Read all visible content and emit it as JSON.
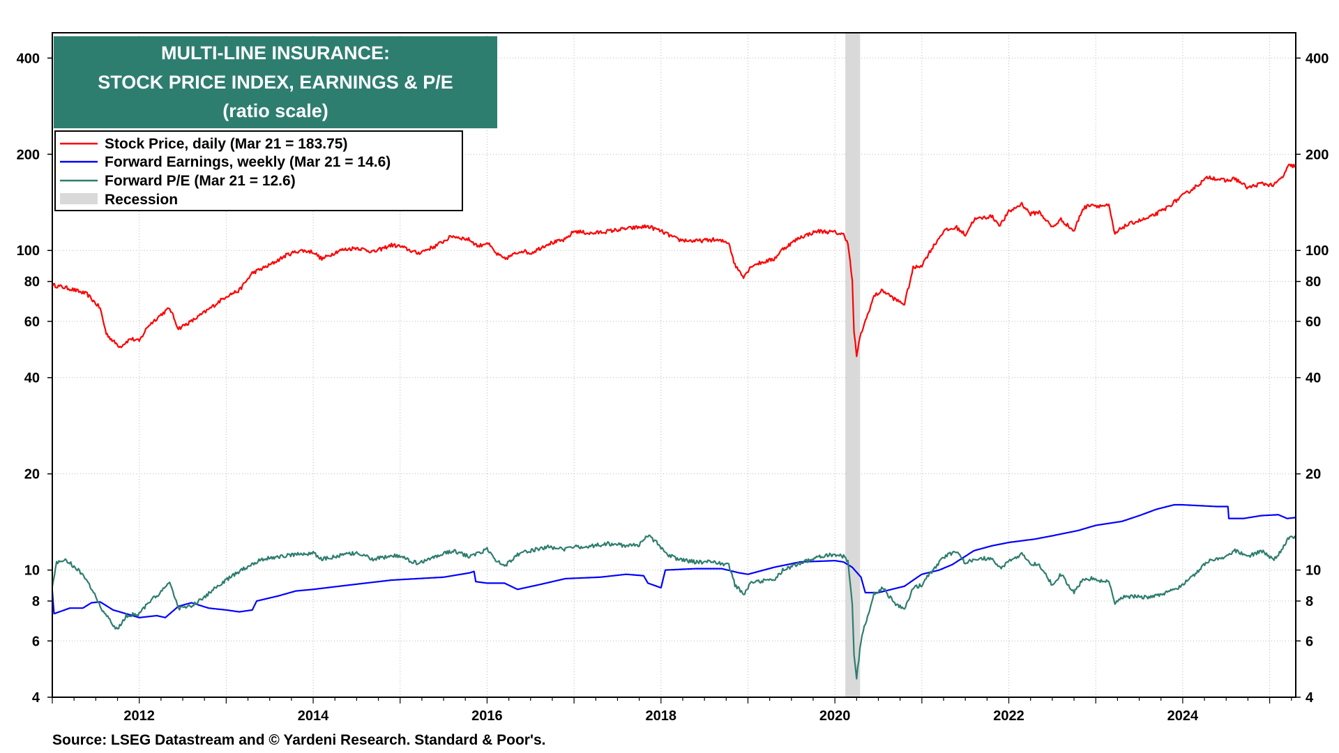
{
  "chart_data": {
    "type": "line",
    "title_lines": [
      "MULTI-LINE INSURANCE:",
      "STOCK PRICE INDEX, EARNINGS & P/E",
      "(ratio scale)"
    ],
    "y_scale": "log",
    "ylim": [
      4,
      480
    ],
    "xlim": [
      2011.0,
      2025.3
    ],
    "y_ticks": [
      4,
      6,
      8,
      10,
      20,
      40,
      60,
      80,
      100,
      200,
      400
    ],
    "x_ticks": [
      "2012",
      "2014",
      "2016",
      "2018",
      "2020",
      "2022",
      "2024"
    ],
    "x_tick_values": [
      2012,
      2014,
      2016,
      2018,
      2020,
      2022,
      2024
    ],
    "grid": true,
    "legend_position": "top-left",
    "recession": {
      "label": "Recession",
      "start": 2020.12,
      "end": 2020.29,
      "color": "#d9d9d9"
    },
    "source": "Source: LSEG Datastream and © Yardeni Research. Standard & Poor's.",
    "series": [
      {
        "name": "Stock Price, daily (Mar 21 = 183.75)",
        "color": "#ff0000",
        "points": [
          [
            2011.0,
            78
          ],
          [
            2011.2,
            76
          ],
          [
            2011.4,
            73
          ],
          [
            2011.55,
            66
          ],
          [
            2011.62,
            55
          ],
          [
            2011.7,
            52
          ],
          [
            2011.78,
            50
          ],
          [
            2011.9,
            53
          ],
          [
            2012.0,
            52
          ],
          [
            2012.1,
            58
          ],
          [
            2012.25,
            63
          ],
          [
            2012.35,
            66
          ],
          [
            2012.45,
            57
          ],
          [
            2012.6,
            60
          ],
          [
            2012.75,
            64
          ],
          [
            2012.85,
            67
          ],
          [
            2013.0,
            72
          ],
          [
            2013.15,
            75
          ],
          [
            2013.3,
            85
          ],
          [
            2013.5,
            90
          ],
          [
            2013.7,
            97
          ],
          [
            2013.85,
            100
          ],
          [
            2014.0,
            99
          ],
          [
            2014.1,
            94
          ],
          [
            2014.3,
            100
          ],
          [
            2014.5,
            102
          ],
          [
            2014.7,
            99
          ],
          [
            2014.9,
            104
          ],
          [
            2015.0,
            103
          ],
          [
            2015.2,
            98
          ],
          [
            2015.4,
            103
          ],
          [
            2015.6,
            111
          ],
          [
            2015.8,
            108
          ],
          [
            2015.9,
            103
          ],
          [
            2016.0,
            106
          ],
          [
            2016.1,
            98
          ],
          [
            2016.2,
            94
          ],
          [
            2016.4,
            100
          ],
          [
            2016.5,
            98
          ],
          [
            2016.7,
            105
          ],
          [
            2016.9,
            108
          ],
          [
            2017.0,
            115
          ],
          [
            2017.2,
            113
          ],
          [
            2017.4,
            115
          ],
          [
            2017.6,
            117
          ],
          [
            2017.85,
            119
          ],
          [
            2018.0,
            115
          ],
          [
            2018.2,
            108
          ],
          [
            2018.4,
            107
          ],
          [
            2018.6,
            108
          ],
          [
            2018.78,
            106
          ],
          [
            2018.85,
            90
          ],
          [
            2018.95,
            83
          ],
          [
            2019.05,
            90
          ],
          [
            2019.3,
            94
          ],
          [
            2019.4,
            101
          ],
          [
            2019.6,
            110
          ],
          [
            2019.8,
            115
          ],
          [
            2020.0,
            114
          ],
          [
            2020.1,
            112
          ],
          [
            2020.15,
            106
          ],
          [
            2020.2,
            80
          ],
          [
            2020.22,
            55
          ],
          [
            2020.25,
            47
          ],
          [
            2020.3,
            55
          ],
          [
            2020.35,
            60
          ],
          [
            2020.45,
            72
          ],
          [
            2020.55,
            75
          ],
          [
            2020.7,
            70
          ],
          [
            2020.8,
            68
          ],
          [
            2020.9,
            88
          ],
          [
            2021.0,
            90
          ],
          [
            2021.1,
            100
          ],
          [
            2021.25,
            115
          ],
          [
            2021.4,
            118
          ],
          [
            2021.5,
            112
          ],
          [
            2021.6,
            125
          ],
          [
            2021.8,
            128
          ],
          [
            2021.9,
            120
          ],
          [
            2022.0,
            132
          ],
          [
            2022.15,
            140
          ],
          [
            2022.25,
            130
          ],
          [
            2022.35,
            132
          ],
          [
            2022.5,
            118
          ],
          [
            2022.6,
            125
          ],
          [
            2022.75,
            115
          ],
          [
            2022.85,
            135
          ],
          [
            2022.95,
            140
          ],
          [
            2023.0,
            138
          ],
          [
            2023.15,
            138
          ],
          [
            2023.22,
            112
          ],
          [
            2023.3,
            118
          ],
          [
            2023.45,
            123
          ],
          [
            2023.6,
            126
          ],
          [
            2023.8,
            135
          ],
          [
            2023.95,
            145
          ],
          [
            2024.1,
            155
          ],
          [
            2024.3,
            170
          ],
          [
            2024.5,
            165
          ],
          [
            2024.6,
            168
          ],
          [
            2024.75,
            157
          ],
          [
            2024.9,
            162
          ],
          [
            2025.05,
            160
          ],
          [
            2025.15,
            170
          ],
          [
            2025.22,
            184
          ],
          [
            2025.3,
            184
          ]
        ]
      },
      {
        "name": "Forward Earnings, weekly (Mar 21 = 14.6)",
        "color": "#0000ff",
        "points": [
          [
            2011.0,
            8.6
          ],
          [
            2011.02,
            7.3
          ],
          [
            2011.2,
            7.6
          ],
          [
            2011.35,
            7.6
          ],
          [
            2011.45,
            7.9
          ],
          [
            2011.55,
            7.95
          ],
          [
            2011.7,
            7.5
          ],
          [
            2011.85,
            7.3
          ],
          [
            2012.0,
            7.1
          ],
          [
            2012.2,
            7.2
          ],
          [
            2012.3,
            7.1
          ],
          [
            2012.45,
            7.7
          ],
          [
            2012.6,
            7.9
          ],
          [
            2012.8,
            7.6
          ],
          [
            2013.0,
            7.5
          ],
          [
            2013.15,
            7.4
          ],
          [
            2013.3,
            7.5
          ],
          [
            2013.35,
            8.0
          ],
          [
            2013.6,
            8.3
          ],
          [
            2013.8,
            8.6
          ],
          [
            2014.0,
            8.7
          ],
          [
            2014.3,
            8.9
          ],
          [
            2014.6,
            9.1
          ],
          [
            2014.9,
            9.3
          ],
          [
            2015.2,
            9.4
          ],
          [
            2015.5,
            9.5
          ],
          [
            2015.8,
            9.8
          ],
          [
            2015.85,
            9.9
          ],
          [
            2015.87,
            9.2
          ],
          [
            2016.0,
            9.1
          ],
          [
            2016.2,
            9.1
          ],
          [
            2016.35,
            8.7
          ],
          [
            2016.6,
            9.0
          ],
          [
            2016.9,
            9.4
          ],
          [
            2017.3,
            9.5
          ],
          [
            2017.6,
            9.7
          ],
          [
            2017.8,
            9.6
          ],
          [
            2017.85,
            9.1
          ],
          [
            2017.95,
            8.9
          ],
          [
            2018.0,
            8.8
          ],
          [
            2018.05,
            10.0
          ],
          [
            2018.4,
            10.1
          ],
          [
            2018.7,
            10.1
          ],
          [
            2018.9,
            9.8
          ],
          [
            2019.0,
            9.7
          ],
          [
            2019.3,
            10.2
          ],
          [
            2019.6,
            10.6
          ],
          [
            2020.0,
            10.7
          ],
          [
            2020.1,
            10.6
          ],
          [
            2020.2,
            10.2
          ],
          [
            2020.3,
            9.5
          ],
          [
            2020.35,
            8.5
          ],
          [
            2020.5,
            8.5
          ],
          [
            2020.8,
            8.9
          ],
          [
            2020.95,
            9.5
          ],
          [
            2021.0,
            9.7
          ],
          [
            2021.2,
            10.0
          ],
          [
            2021.35,
            10.4
          ],
          [
            2021.6,
            11.5
          ],
          [
            2021.8,
            11.9
          ],
          [
            2022.0,
            12.2
          ],
          [
            2022.3,
            12.5
          ],
          [
            2022.5,
            12.8
          ],
          [
            2022.8,
            13.3
          ],
          [
            2023.0,
            13.8
          ],
          [
            2023.3,
            14.2
          ],
          [
            2023.5,
            14.8
          ],
          [
            2023.7,
            15.5
          ],
          [
            2023.9,
            16.0
          ],
          [
            2024.0,
            16.0
          ],
          [
            2024.2,
            15.9
          ],
          [
            2024.4,
            15.8
          ],
          [
            2024.52,
            15.8
          ],
          [
            2024.53,
            14.5
          ],
          [
            2024.7,
            14.5
          ],
          [
            2024.9,
            14.8
          ],
          [
            2025.1,
            14.9
          ],
          [
            2025.2,
            14.5
          ],
          [
            2025.3,
            14.6
          ]
        ]
      },
      {
        "name": "Forward P/E (Mar 21 = 12.6)",
        "color": "#2e7d6e",
        "points": [
          [
            2011.0,
            9.0
          ],
          [
            2011.05,
            10.5
          ],
          [
            2011.15,
            10.8
          ],
          [
            2011.3,
            10.0
          ],
          [
            2011.45,
            8.8
          ],
          [
            2011.55,
            7.7
          ],
          [
            2011.65,
            7.0
          ],
          [
            2011.75,
            6.5
          ],
          [
            2011.85,
            7.2
          ],
          [
            2012.0,
            7.3
          ],
          [
            2012.1,
            7.9
          ],
          [
            2012.25,
            8.5
          ],
          [
            2012.35,
            9.2
          ],
          [
            2012.45,
            7.6
          ],
          [
            2012.6,
            7.7
          ],
          [
            2012.75,
            8.2
          ],
          [
            2012.85,
            8.7
          ],
          [
            2013.0,
            9.3
          ],
          [
            2013.2,
            10.1
          ],
          [
            2013.4,
            10.8
          ],
          [
            2013.6,
            11.0
          ],
          [
            2013.8,
            11.2
          ],
          [
            2014.0,
            11.3
          ],
          [
            2014.1,
            10.8
          ],
          [
            2014.3,
            11.1
          ],
          [
            2014.5,
            11.3
          ],
          [
            2014.7,
            10.8
          ],
          [
            2014.9,
            11.1
          ],
          [
            2015.0,
            11.0
          ],
          [
            2015.2,
            10.5
          ],
          [
            2015.4,
            11.0
          ],
          [
            2015.6,
            11.5
          ],
          [
            2015.8,
            11.0
          ],
          [
            2015.9,
            11.3
          ],
          [
            2016.0,
            11.6
          ],
          [
            2016.1,
            10.8
          ],
          [
            2016.2,
            10.3
          ],
          [
            2016.35,
            11.2
          ],
          [
            2016.5,
            11.5
          ],
          [
            2016.7,
            11.8
          ],
          [
            2016.9,
            11.6
          ],
          [
            2017.0,
            11.8
          ],
          [
            2017.2,
            11.9
          ],
          [
            2017.4,
            12.1
          ],
          [
            2017.6,
            11.9
          ],
          [
            2017.75,
            12.0
          ],
          [
            2017.85,
            12.8
          ],
          [
            2017.95,
            12.2
          ],
          [
            2018.05,
            11.3
          ],
          [
            2018.2,
            10.8
          ],
          [
            2018.4,
            10.6
          ],
          [
            2018.6,
            10.6
          ],
          [
            2018.78,
            10.4
          ],
          [
            2018.85,
            9.0
          ],
          [
            2018.95,
            8.4
          ],
          [
            2019.05,
            9.2
          ],
          [
            2019.3,
            9.3
          ],
          [
            2019.4,
            10.0
          ],
          [
            2019.6,
            10.5
          ],
          [
            2019.8,
            11.0
          ],
          [
            2020.0,
            11.2
          ],
          [
            2020.1,
            11.0
          ],
          [
            2020.15,
            10.6
          ],
          [
            2020.2,
            7.8
          ],
          [
            2020.22,
            5.5
          ],
          [
            2020.25,
            4.6
          ],
          [
            2020.3,
            6.0
          ],
          [
            2020.35,
            6.8
          ],
          [
            2020.45,
            8.4
          ],
          [
            2020.55,
            8.8
          ],
          [
            2020.7,
            7.8
          ],
          [
            2020.8,
            7.6
          ],
          [
            2020.9,
            8.8
          ],
          [
            2021.0,
            9.0
          ],
          [
            2021.1,
            9.8
          ],
          [
            2021.25,
            11.0
          ],
          [
            2021.4,
            11.4
          ],
          [
            2021.5,
            10.5
          ],
          [
            2021.6,
            10.8
          ],
          [
            2021.8,
            10.9
          ],
          [
            2021.9,
            10.1
          ],
          [
            2022.0,
            10.6
          ],
          [
            2022.15,
            11.2
          ],
          [
            2022.25,
            10.5
          ],
          [
            2022.35,
            10.4
          ],
          [
            2022.5,
            9.0
          ],
          [
            2022.6,
            9.7
          ],
          [
            2022.75,
            8.5
          ],
          [
            2022.85,
            9.3
          ],
          [
            2022.95,
            9.4
          ],
          [
            2023.0,
            9.3
          ],
          [
            2023.15,
            9.2
          ],
          [
            2023.22,
            7.8
          ],
          [
            2023.3,
            8.2
          ],
          [
            2023.45,
            8.3
          ],
          [
            2023.6,
            8.2
          ],
          [
            2023.8,
            8.5
          ],
          [
            2023.95,
            8.8
          ],
          [
            2024.1,
            9.5
          ],
          [
            2024.3,
            10.7
          ],
          [
            2024.5,
            11.0
          ],
          [
            2024.6,
            11.5
          ],
          [
            2024.75,
            11.0
          ],
          [
            2024.9,
            11.5
          ],
          [
            2025.05,
            10.8
          ],
          [
            2025.15,
            11.7
          ],
          [
            2025.22,
            12.6
          ],
          [
            2025.3,
            12.6
          ]
        ]
      }
    ]
  }
}
